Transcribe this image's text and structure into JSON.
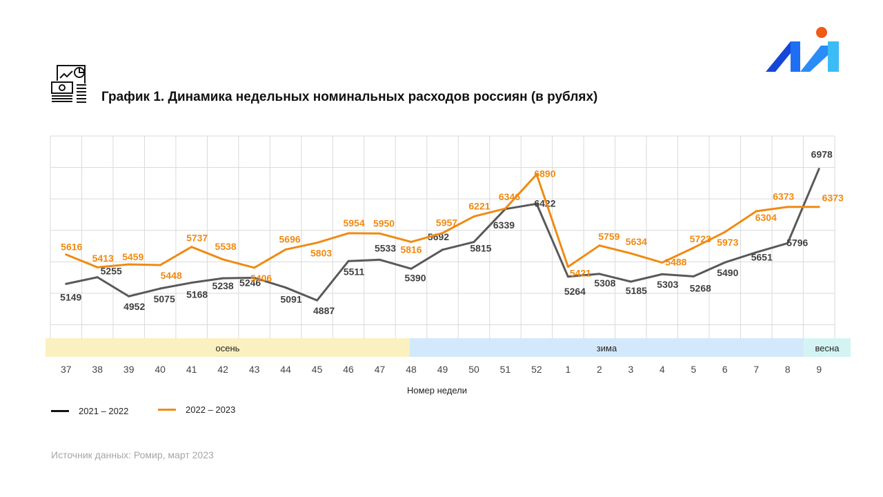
{
  "chart_data": {
    "type": "line",
    "title": "График 1. Динамика недельных номинальных расходов россиян (в рублях)",
    "xlabel": "Номер недели",
    "ylabel": "",
    "categories": [
      "37",
      "38",
      "39",
      "40",
      "41",
      "42",
      "43",
      "44",
      "45",
      "46",
      "47",
      "48",
      "49",
      "50",
      "51",
      "52",
      "1",
      "2",
      "3",
      "4",
      "5",
      "6",
      "7",
      "8",
      "9"
    ],
    "ylim": [
      4000,
      7500
    ],
    "grid": true,
    "legend_placement": "bottom-left",
    "seasons": [
      {
        "label": "осень",
        "color": "#fbf0c0"
      },
      {
        "label": "зима",
        "color": "#d3e9fb"
      },
      {
        "label": "весна",
        "color": "#d4f4f4"
      }
    ],
    "series": [
      {
        "name": "2021 – 2022",
        "color": "#595959",
        "values": [
          5149,
          5255,
          4952,
          5075,
          5168,
          5238,
          5246,
          5091,
          4887,
          5511,
          5533,
          5390,
          5692,
          5815,
          6339,
          6422,
          5264,
          5308,
          5185,
          5303,
          5268,
          5490,
          5651,
          5796,
          6978
        ]
      },
      {
        "name": "2022 – 2023",
        "color": "#f08a12",
        "values": [
          5616,
          5413,
          5459,
          5448,
          5737,
          5538,
          5406,
          5696,
          5803,
          5954,
          5950,
          5816,
          5957,
          6221,
          6346,
          6890,
          5421,
          5759,
          5634,
          5488,
          5723,
          5973,
          6304,
          6373,
          6373
        ]
      }
    ]
  },
  "source": "Источник данных: Ромир, март 2023",
  "icons": {
    "title_icon": "finance-report-icon",
    "logo": "romir-logo"
  },
  "colors": {
    "logo_dark": "#1447d6",
    "logo_mid": "#1f6ff5",
    "logo_light": "#3cbcf6",
    "logo_dot": "#f05a14"
  }
}
